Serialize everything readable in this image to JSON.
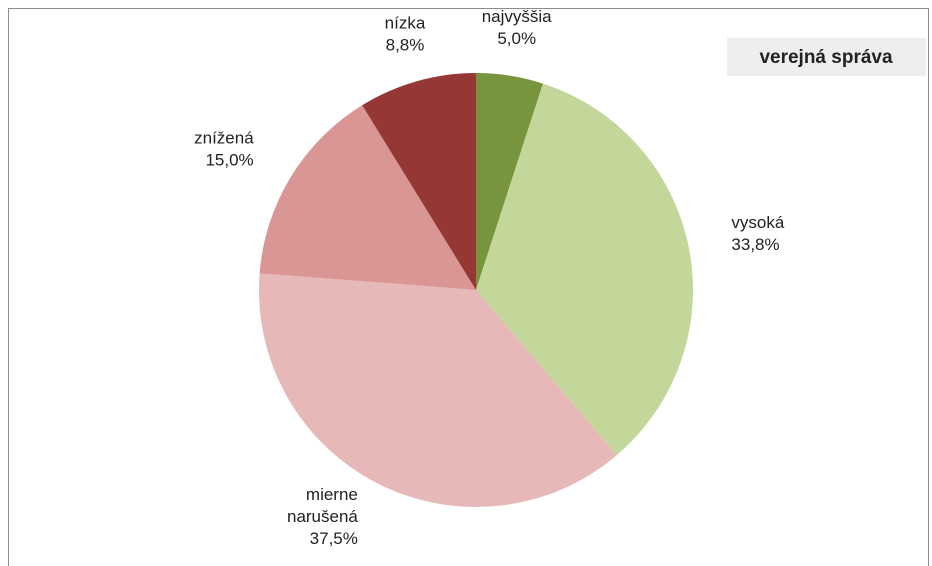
{
  "chart_data": {
    "type": "pie",
    "title": "verejná správa",
    "categories": [
      "najvyššia",
      "vysoká",
      "mierne narušená",
      "znížená",
      "nízka"
    ],
    "values": [
      5.0,
      33.8,
      37.5,
      15.0,
      8.8
    ],
    "value_labels": [
      "5,0%",
      "33,8%",
      "37,5%",
      "15,0%",
      "8,8%"
    ],
    "colors": [
      "#77953d",
      "#c4d79b",
      "#e6b9b8",
      "#da9694",
      "#953735"
    ]
  }
}
